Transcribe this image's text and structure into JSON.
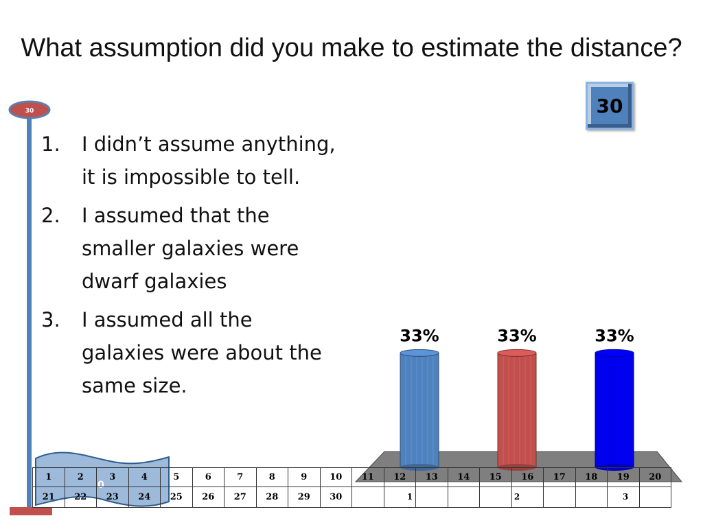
{
  "slide": {
    "title": "What assumption did you make to estimate the distance?",
    "timer_value": "30",
    "countdown_label": "30",
    "flag_value": "0"
  },
  "answers": [
    {
      "number": "1.",
      "text": "I didn’t assume anything, it is impossible to tell."
    },
    {
      "number": "2.",
      "text": "I assumed that the smaller galaxies were dwarf galaxies"
    },
    {
      "number": "3.",
      "text": "I assumed all the galaxies were about the same size."
    }
  ],
  "chart_data": {
    "type": "bar",
    "categories": [
      "1",
      "2",
      "3"
    ],
    "values": [
      33,
      33,
      33
    ],
    "data_labels": [
      "33%",
      "33%",
      "33%"
    ],
    "ylim": [
      0,
      100
    ],
    "colors": [
      "#4f81bd",
      "#c0504d",
      "#0000ee"
    ]
  },
  "response_grid": {
    "row1": [
      "1",
      "2",
      "3",
      "4",
      "5",
      "6",
      "7",
      "8",
      "9",
      "10",
      "11",
      "12",
      "13",
      "14",
      "15",
      "16",
      "17",
      "18",
      "19",
      "20"
    ],
    "row2": [
      "21",
      "22",
      "23",
      "24",
      "25",
      "26",
      "27",
      "28",
      "29",
      "30",
      "",
      "",
      "",
      "",
      "",
      "",
      "",
      "",
      "",
      ""
    ]
  },
  "colors": {
    "timer_bg": "#4f81bd",
    "countdown_red": "#c0504d",
    "pole_blue": "#4f81bd",
    "platform": "#7f7f7f"
  }
}
